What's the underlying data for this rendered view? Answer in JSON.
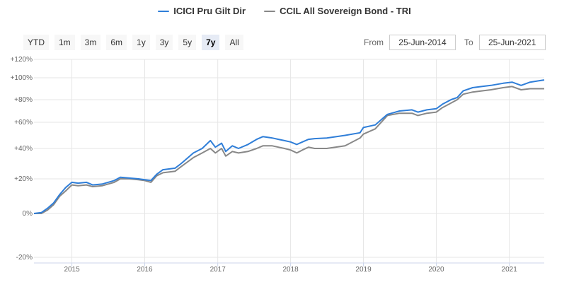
{
  "legend": {
    "series_a": "ICICI Pru Gilt Dir",
    "series_b": "CCIL All Sovereign Bond - TRI"
  },
  "range_buttons": [
    {
      "label": "YTD",
      "active": false
    },
    {
      "label": "1m",
      "active": false
    },
    {
      "label": "3m",
      "active": false
    },
    {
      "label": "6m",
      "active": false
    },
    {
      "label": "1y",
      "active": false
    },
    {
      "label": "3y",
      "active": false
    },
    {
      "label": "5y",
      "active": false
    },
    {
      "label": "7y",
      "active": true
    },
    {
      "label": "All",
      "active": false
    }
  ],
  "date_range": {
    "from_label": "From",
    "from_value": "25-Jun-2014",
    "to_label": "To",
    "to_value": "25-Jun-2021"
  },
  "chart_data": {
    "type": "line",
    "title": "",
    "xlabel": "",
    "ylabel": "",
    "x_ticks": [
      "2015",
      "2016",
      "2017",
      "2018",
      "2019",
      "2020",
      "2021"
    ],
    "y_ticks": [
      "-20%",
      "0%",
      "+20%",
      "+40%",
      "+60%",
      "+80%",
      "+100%",
      "+120%"
    ],
    "ylim": [
      -20,
      120
    ],
    "xlim": [
      "2014-06-25",
      "2021-06-25"
    ],
    "grid": true,
    "legend_position": "top-center",
    "series": [
      {
        "name": "ICICI Pru Gilt Dir",
        "color": "#2f7ed8",
        "points": [
          [
            "2014-06-25",
            0
          ],
          [
            "2014-08-01",
            0.5
          ],
          [
            "2014-09-01",
            3
          ],
          [
            "2014-10-01",
            6
          ],
          [
            "2014-11-01",
            11
          ],
          [
            "2014-12-01",
            15
          ],
          [
            "2015-01-01",
            18
          ],
          [
            "2015-02-01",
            17.5
          ],
          [
            "2015-03-15",
            18
          ],
          [
            "2015-04-15",
            16.5
          ],
          [
            "2015-06-01",
            17
          ],
          [
            "2015-08-01",
            19
          ],
          [
            "2015-09-01",
            21
          ],
          [
            "2015-10-15",
            20.5
          ],
          [
            "2015-12-01",
            20
          ],
          [
            "2016-01-01",
            19.5
          ],
          [
            "2016-02-01",
            19
          ],
          [
            "2016-03-01",
            23
          ],
          [
            "2016-04-01",
            26
          ],
          [
            "2016-06-01",
            27
          ],
          [
            "2016-07-01",
            30
          ],
          [
            "2016-09-01",
            37
          ],
          [
            "2016-10-15",
            40
          ],
          [
            "2016-11-25",
            46
          ],
          [
            "2016-12-20",
            41
          ],
          [
            "2017-01-20",
            44
          ],
          [
            "2017-02-10",
            38
          ],
          [
            "2017-03-15",
            42
          ],
          [
            "2017-04-15",
            40
          ],
          [
            "2017-06-01",
            43
          ],
          [
            "2017-07-15",
            47
          ],
          [
            "2017-08-15",
            49
          ],
          [
            "2017-10-01",
            48
          ],
          [
            "2017-11-01",
            47
          ],
          [
            "2017-12-01",
            46
          ],
          [
            "2018-01-01",
            45
          ],
          [
            "2018-02-01",
            43
          ],
          [
            "2018-03-01",
            45
          ],
          [
            "2018-04-01",
            47
          ],
          [
            "2018-05-01",
            47.5
          ],
          [
            "2018-07-01",
            48
          ],
          [
            "2018-10-01",
            50
          ],
          [
            "2018-12-15",
            52
          ],
          [
            "2019-01-01",
            56
          ],
          [
            "2019-03-01",
            58
          ],
          [
            "2019-05-01",
            67
          ],
          [
            "2019-07-01",
            70
          ],
          [
            "2019-09-01",
            71
          ],
          [
            "2019-10-01",
            69
          ],
          [
            "2019-11-15",
            71
          ],
          [
            "2020-01-01",
            72
          ],
          [
            "2020-02-01",
            76
          ],
          [
            "2020-03-15",
            80
          ],
          [
            "2020-04-15",
            82
          ],
          [
            "2020-05-15",
            88
          ],
          [
            "2020-07-01",
            91
          ],
          [
            "2020-08-15",
            92
          ],
          [
            "2020-10-01",
            93
          ],
          [
            "2020-12-01",
            95
          ],
          [
            "2021-01-15",
            96
          ],
          [
            "2021-03-01",
            93
          ],
          [
            "2021-04-15",
            96
          ],
          [
            "2021-06-25",
            98
          ]
        ]
      },
      {
        "name": "CCIL All Sovereign Bond - TRI",
        "color": "#888888",
        "points": [
          [
            "2014-06-25",
            0
          ],
          [
            "2014-08-01",
            0
          ],
          [
            "2014-09-01",
            2
          ],
          [
            "2014-10-01",
            5
          ],
          [
            "2014-11-01",
            10
          ],
          [
            "2014-12-01",
            13
          ],
          [
            "2015-01-01",
            16.5
          ],
          [
            "2015-02-01",
            16
          ],
          [
            "2015-03-15",
            16.5
          ],
          [
            "2015-04-15",
            15.5
          ],
          [
            "2015-06-01",
            16
          ],
          [
            "2015-08-01",
            18
          ],
          [
            "2015-09-01",
            20
          ],
          [
            "2015-10-15",
            20
          ],
          [
            "2015-12-01",
            19.5
          ],
          [
            "2016-01-01",
            19
          ],
          [
            "2016-02-01",
            18
          ],
          [
            "2016-03-01",
            22
          ],
          [
            "2016-04-01",
            24
          ],
          [
            "2016-06-01",
            25
          ],
          [
            "2016-07-01",
            28
          ],
          [
            "2016-09-01",
            34
          ],
          [
            "2016-10-15",
            37
          ],
          [
            "2016-11-25",
            40
          ],
          [
            "2016-12-20",
            37
          ],
          [
            "2017-01-20",
            40
          ],
          [
            "2017-02-10",
            35
          ],
          [
            "2017-03-15",
            38
          ],
          [
            "2017-04-15",
            37
          ],
          [
            "2017-06-01",
            38
          ],
          [
            "2017-07-15",
            40
          ],
          [
            "2017-08-15",
            42
          ],
          [
            "2017-10-01",
            42
          ],
          [
            "2017-11-01",
            41
          ],
          [
            "2017-12-01",
            40
          ],
          [
            "2018-01-01",
            39
          ],
          [
            "2018-02-01",
            37
          ],
          [
            "2018-03-01",
            39
          ],
          [
            "2018-04-01",
            41
          ],
          [
            "2018-05-01",
            40
          ],
          [
            "2018-07-01",
            40
          ],
          [
            "2018-10-01",
            42
          ],
          [
            "2018-12-15",
            48
          ],
          [
            "2019-01-01",
            51
          ],
          [
            "2019-03-01",
            55
          ],
          [
            "2019-05-01",
            66
          ],
          [
            "2019-07-01",
            68
          ],
          [
            "2019-09-01",
            68
          ],
          [
            "2019-10-01",
            66
          ],
          [
            "2019-11-15",
            68
          ],
          [
            "2020-01-01",
            69
          ],
          [
            "2020-02-01",
            73
          ],
          [
            "2020-03-15",
            77
          ],
          [
            "2020-04-15",
            80
          ],
          [
            "2020-05-15",
            85
          ],
          [
            "2020-07-01",
            87
          ],
          [
            "2020-08-15",
            88
          ],
          [
            "2020-10-01",
            89
          ],
          [
            "2020-12-01",
            91
          ],
          [
            "2021-01-15",
            92
          ],
          [
            "2021-03-01",
            89
          ],
          [
            "2021-04-15",
            90
          ],
          [
            "2021-06-25",
            90
          ]
        ]
      }
    ]
  }
}
